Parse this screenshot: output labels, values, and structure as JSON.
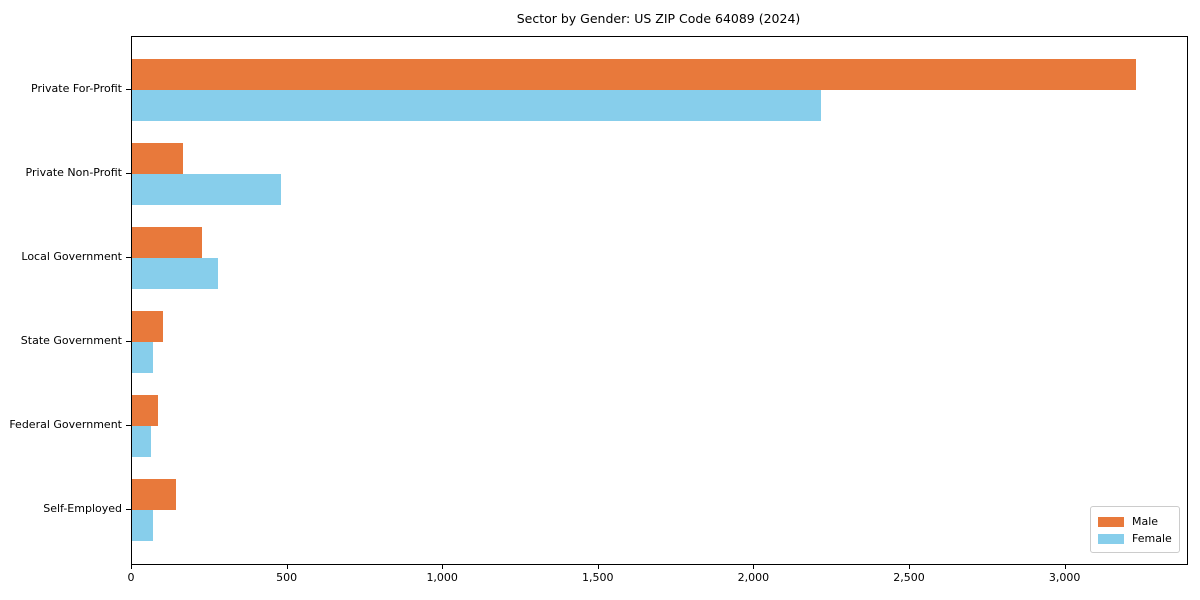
{
  "figure": {
    "title": "Sector by Gender: US ZIP Code 64089 (2024)"
  },
  "chart_data": {
    "type": "bar",
    "orientation": "horizontal",
    "title": "Sector by Gender: US ZIP Code 64089 (2024)",
    "xlabel": "",
    "ylabel": "",
    "categories": [
      "Private For-Profit",
      "Private Non-Profit",
      "Local Government",
      "State Government",
      "Federal Government",
      "Self-Employed"
    ],
    "series": [
      {
        "name": "Male",
        "color": "#e8793b",
        "values": [
          3225,
          165,
          225,
          100,
          84,
          140
        ]
      },
      {
        "name": "Female",
        "color": "#87ceeb",
        "values": [
          2215,
          480,
          277,
          68,
          60,
          66
        ]
      }
    ],
    "xlim": [
      0,
      3390
    ],
    "xticks": [
      {
        "value": 0,
        "label": "0"
      },
      {
        "value": 500,
        "label": "500"
      },
      {
        "value": 1000,
        "label": "1,000"
      },
      {
        "value": 1500,
        "label": "1,500"
      },
      {
        "value": 2000,
        "label": "2,000"
      },
      {
        "value": 2500,
        "label": "2,500"
      },
      {
        "value": 3000,
        "label": "3,000"
      }
    ],
    "grid": false,
    "legend": {
      "position": "lower right",
      "entries": [
        "Male",
        "Female"
      ]
    },
    "colors": {
      "male": "#e8793b",
      "female": "#87ceeb",
      "spine": "#000000",
      "legend_border": "#cccccc",
      "background": "#ffffff"
    }
  }
}
